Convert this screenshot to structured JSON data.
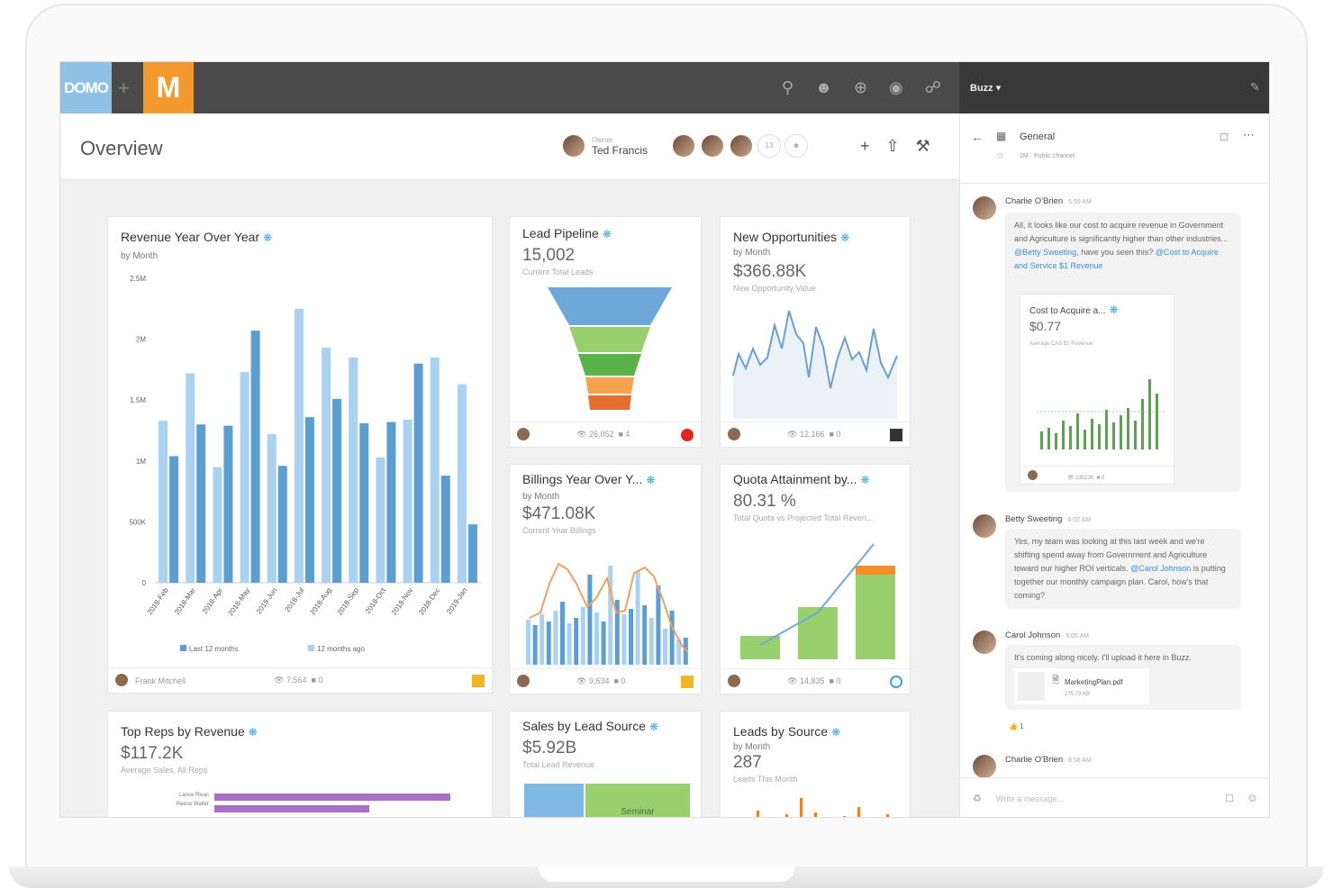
{
  "topbar": {
    "logo": "DOMO",
    "plus": "+",
    "app_logo": "M"
  },
  "buzzbar": {
    "title": "Buzz ▾"
  },
  "header": {
    "title": "Overview",
    "owner_label": "Owner",
    "owner_name": "Ted Francis",
    "members_count": "13"
  },
  "cards": {
    "revenue": {
      "title": "Revenue Year Over Year",
      "subtitle": "by Month",
      "footer_user": "Frank Mitchell",
      "views": "7,564",
      "comments": "0"
    },
    "lead": {
      "title": "Lead Pipeline",
      "value": "15,002",
      "desc": "Current Total Leads",
      "views": "26,052",
      "comments": "4"
    },
    "newopp": {
      "title": "New Opportunities",
      "subtitle": "by Month",
      "value": "$366.88K",
      "desc": "New Opportunity Value",
      "views": "12,166",
      "comments": "0"
    },
    "billings": {
      "title": "Billings Year Over Y...",
      "subtitle": "by Month",
      "value": "$471.08K",
      "desc": "Current Year Billings",
      "views": "9,634",
      "comments": "0"
    },
    "quota": {
      "title": "Quota Attainment by...",
      "value": "80.31 %",
      "desc": "Total Quota vs Projected Total Reven...",
      "views": "14,835",
      "comments": "0"
    },
    "topreps": {
      "title": "Top Reps by Revenue",
      "value": "$117.2K",
      "desc": "Average Sales, All Reps",
      "rep1": "Lance Rivas",
      "rep2": "Reese Walter"
    },
    "sales": {
      "title": "Sales by Lead Source",
      "value": "$5.92B",
      "desc": "Total Lead Revenue",
      "seg": "Seminar"
    },
    "leads": {
      "title": "Leads by Source",
      "subtitle": "by Month",
      "value": "287",
      "desc": "Leads This Month"
    }
  },
  "chart_data": [
    {
      "type": "bar",
      "title": "Revenue Year Over Year",
      "subtitle": "by Month",
      "categories": [
        "2018-Feb",
        "2018-Mar",
        "2018-Apr",
        "2018-May",
        "2018-Jun",
        "2018-Jul",
        "2018-Aug",
        "2018-Sep",
        "2018-Oct",
        "2018-Nov",
        "2018-Dec",
        "2019-Jan"
      ],
      "series": [
        {
          "name": "12 months ago",
          "values": [
            1330000,
            1720000,
            950000,
            1730000,
            1220000,
            2250000,
            1930000,
            1850000,
            1030000,
            1340000,
            1850000,
            1630000
          ]
        },
        {
          "name": "Last 12 months",
          "values": [
            1040000,
            1300000,
            1290000,
            2070000,
            960000,
            1360000,
            1510000,
            1310000,
            1320000,
            1800000,
            880000,
            480000
          ]
        }
      ],
      "ylim": [
        0,
        2500000
      ],
      "yticks": [
        "0",
        "500K",
        "1M",
        "1.5M",
        "2M",
        "2.5M"
      ],
      "legend": "bottom"
    }
  ],
  "buzz": {
    "channel": "General",
    "channel_meta": "2M · Public channel",
    "messages": [
      {
        "name": "Charlie O'Brien",
        "time": "5:59 AM",
        "text1": "All, it looks like our cost to acquire revenue in Government and Agriculture is significantly higher than other industries...",
        "mention": "@Betty Sweeting,",
        "text2": "have you seen this?",
        "link": "@Cost to Acquire and Service $1 Revenue"
      },
      {
        "name": "Betty Sweeting",
        "time": "6:02 AM",
        "text1": "Yes, my team was looking at this last week and we're shifting spend away from Government and Agriculture toward our higher ROI verticals.",
        "mention": "@Carol Johnson",
        "text2": "is putting together our monthly campaign plan. Carol, how's that coming?"
      },
      {
        "name": "Carol Johnson",
        "time": "6:05 AM",
        "text1": "It's coming along nicely. I'll upload it here in Buzz.",
        "file": "MarketingPlan.pdf",
        "size": "275.73 KB",
        "reaction": "1"
      },
      {
        "name": "Charlie O'Brien",
        "time": "6:08 AM"
      }
    ],
    "embed": {
      "title": "Cost to Acquire a...",
      "value": "$0.77",
      "desc": "Average CAS $1 Revenue",
      "views": "130230",
      "comments": "0"
    },
    "input_placeholder": "Write a message..."
  }
}
